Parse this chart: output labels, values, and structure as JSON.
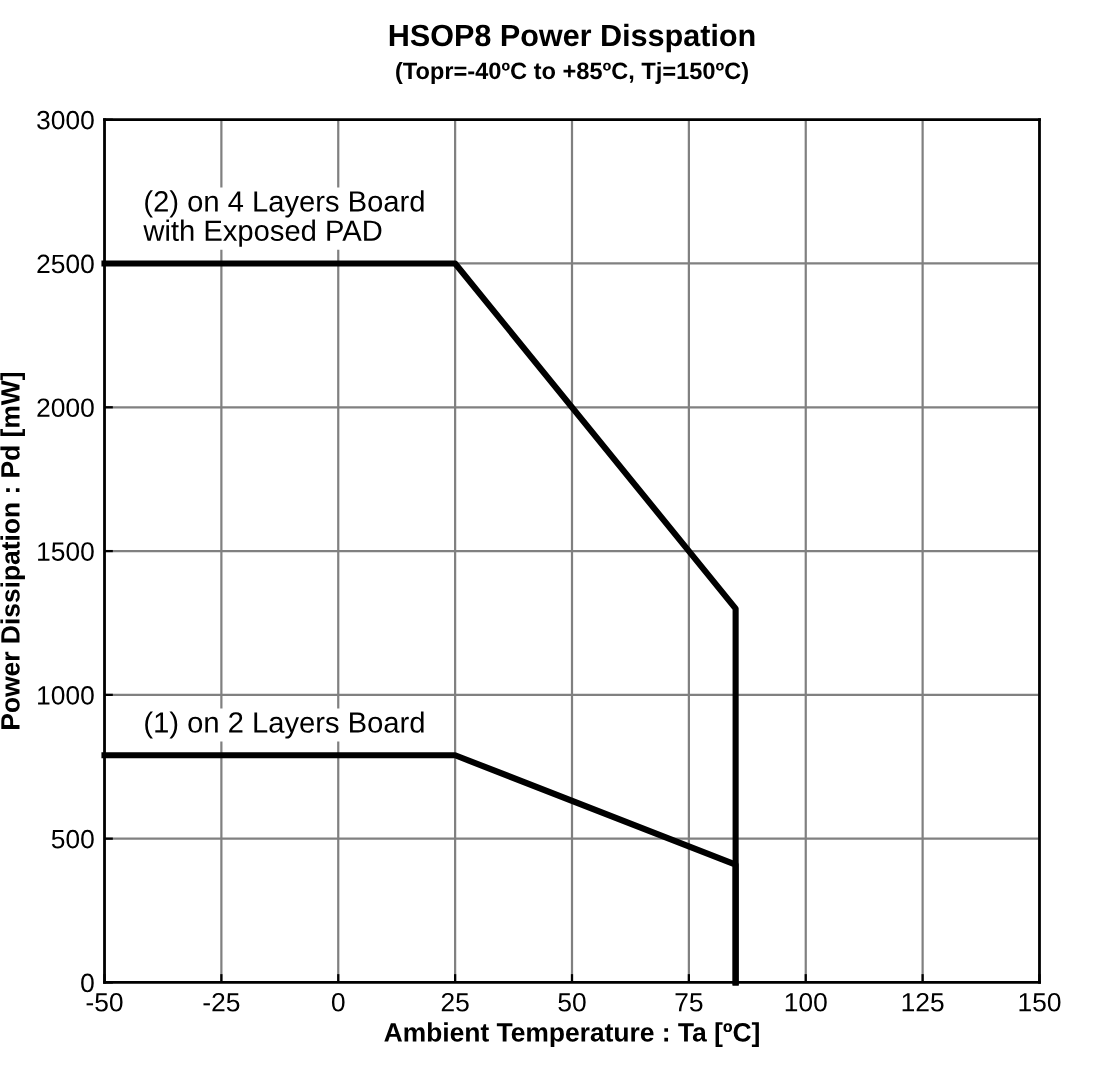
{
  "chart_data": {
    "type": "line",
    "title": "HSOP8 Power Disspation",
    "subtitle": "(Topr=-40ºC to +85ºC, Tj=150ºC)",
    "xlabel": "Ambient Temperature : Ta [ºC]",
    "ylabel": "Power Dissipation : Pd [mW]",
    "series": [
      {
        "name": "(2) on 4 Layers Board\nwith Exposed PAD",
        "color": "#000000",
        "x": [
          -50,
          25,
          85,
          85
        ],
        "values": [
          2500,
          2500,
          1300,
          0
        ]
      },
      {
        "name": "(1) on 2 Layers Board",
        "color": "#000000",
        "x": [
          -50,
          25,
          85,
          85
        ],
        "values": [
          790,
          790,
          410,
          0
        ]
      }
    ],
    "xlim": [
      -50,
      150
    ],
    "xticks": [
      -50,
      -25,
      0,
      25,
      50,
      75,
      100,
      125,
      150
    ],
    "ylim": [
      0,
      3000
    ],
    "yticks": [
      0,
      500,
      1000,
      1500,
      2000,
      2500,
      3000
    ],
    "grid": true,
    "line_style": "solid",
    "legend": false
  }
}
